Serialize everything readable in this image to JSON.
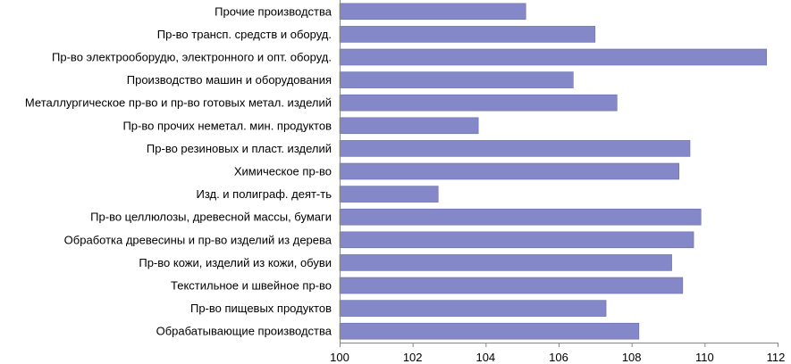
{
  "chart_data": {
    "type": "bar",
    "orientation": "horizontal",
    "title": "",
    "xlabel": "",
    "ylabel": "",
    "categories": [
      "Прочие производства",
      "Пр-во трансп. средств и оборуд.",
      "Пр-во электрооборудю, электронного и опт. оборуд.",
      "Производство машин и оборудования",
      "Металлургическое пр-во и пр-во готовых метал. изделий",
      "Пр-во прочих неметал. мин. продуктов",
      "Пр-во резиновых и пласт. изделий",
      "Химическое пр-во",
      "Изд. и полиграф. деят-ть",
      "Пр-во целлюлозы, древесной массы, бумаги",
      "Обработка древесины и пр-во изделий из дерева",
      "Пр-во кожи, изделий из кожи, обуви",
      "Текстильное и швейное пр-во",
      "Пр-во пищевых продуктов",
      "Обрабатывающие производства"
    ],
    "values": [
      105.1,
      107.0,
      111.7,
      106.4,
      107.6,
      103.8,
      109.6,
      109.3,
      102.7,
      109.9,
      109.7,
      109.1,
      109.4,
      107.3,
      108.2
    ],
    "xlim": [
      100,
      112
    ],
    "xticks": [
      "100",
      "102",
      "104",
      "106",
      "108",
      "110",
      "112"
    ],
    "xtick_values": [
      100,
      102,
      104,
      106,
      108,
      110,
      112
    ],
    "grid": false,
    "legend": "none",
    "bar_color": "#8488C8",
    "bar_edge_color": "#6A6EB0"
  }
}
